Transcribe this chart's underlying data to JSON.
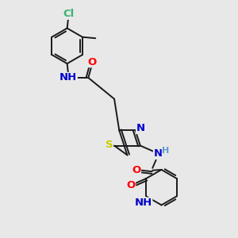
{
  "bg_color": "#e8e8e8",
  "bond_color": "#1a1a1a",
  "atom_colors": {
    "Cl": "#3cb371",
    "N": "#0000cc",
    "O": "#ff0000",
    "S": "#cccc00",
    "H": "#5b9bd5",
    "C": "#1a1a1a"
  },
  "lw": 1.4,
  "fs": 9.5,
  "fs2": 8.0
}
